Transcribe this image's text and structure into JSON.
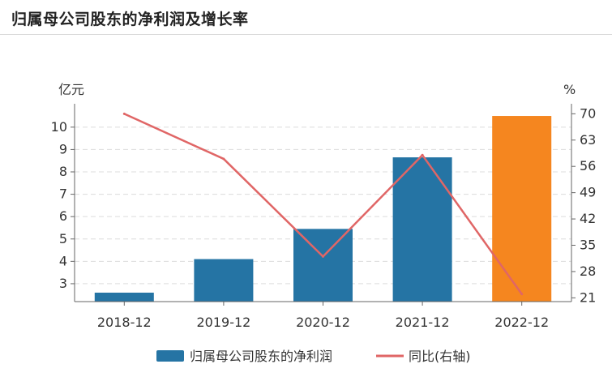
{
  "title": "归属母公司股东的净利润及增长率",
  "chart_data": {
    "type": "bar+line",
    "categories": [
      "2018-12",
      "2019-12",
      "2020-12",
      "2021-12",
      "2022-12"
    ],
    "series": [
      {
        "name": "归属母公司股东的净利润",
        "type": "bar",
        "axis": "left",
        "values": [
          2.6,
          4.1,
          5.45,
          8.65,
          10.5
        ],
        "colors": [
          "#2574a4",
          "#2574a4",
          "#2574a4",
          "#2574a4",
          "#f5861f"
        ]
      },
      {
        "name": "同比(右轴)",
        "type": "line",
        "axis": "right",
        "color": "#e06666",
        "values": [
          70,
          58,
          32,
          59,
          22
        ]
      }
    ],
    "y_left": {
      "label": "亿元",
      "ticks": [
        3,
        4,
        5,
        6,
        7,
        8,
        9,
        10
      ],
      "range": [
        2.2,
        10.9
      ]
    },
    "y_right": {
      "label": "%",
      "ticks": [
        21,
        28,
        35,
        42,
        49,
        56,
        63,
        70
      ],
      "range": [
        20,
        71.8
      ]
    },
    "grid": true,
    "legend_position": "bottom-center"
  }
}
